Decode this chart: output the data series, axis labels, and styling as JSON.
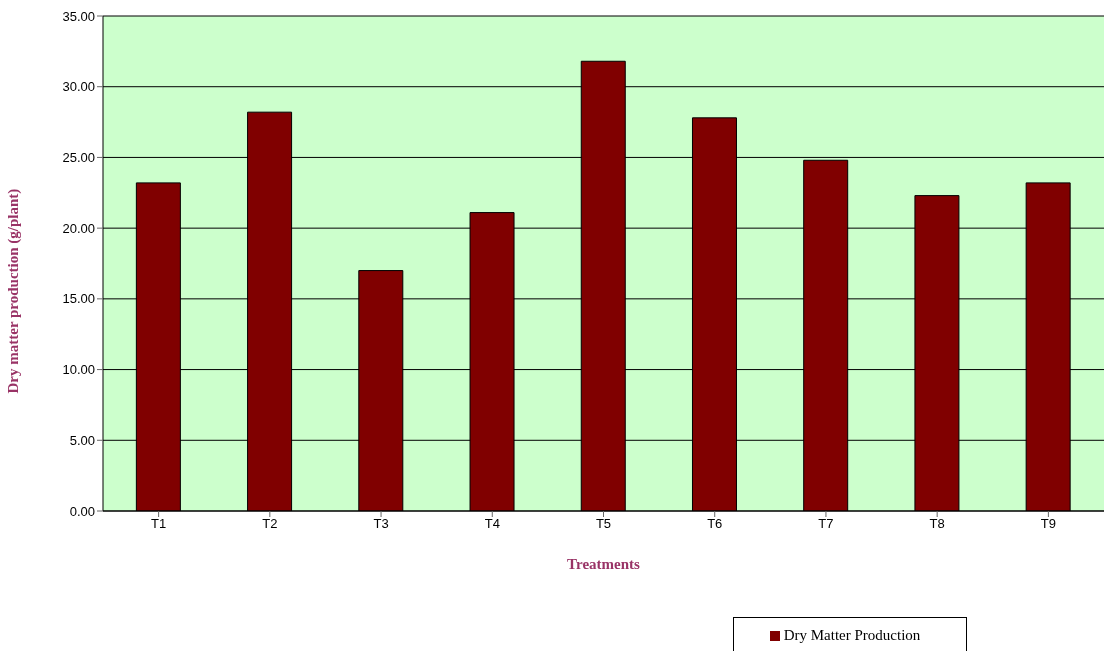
{
  "chart_data": {
    "type": "bar",
    "xlabel": "Treatments",
    "ylabel": "Dry matter production (g/plant)",
    "categories": [
      "T1",
      "T2",
      "T3",
      "T4",
      "T5",
      "T6",
      "T7",
      "T8",
      "T9"
    ],
    "series": [
      {
        "name": "Dry Matter Production",
        "color": "#800000",
        "values": [
          23.2,
          28.2,
          17.0,
          21.1,
          31.8,
          27.8,
          24.8,
          22.3,
          23.2
        ]
      }
    ],
    "ylim": [
      0,
      35
    ],
    "yticks": [
      {
        "value": 0,
        "label": "0.00"
      },
      {
        "value": 5,
        "label": "5.00"
      },
      {
        "value": 10,
        "label": "10.00"
      },
      {
        "value": 15,
        "label": "15.00"
      },
      {
        "value": 20,
        "label": "20.00"
      },
      {
        "value": 25,
        "label": "25.00"
      },
      {
        "value": 30,
        "label": "30.00"
      },
      {
        "value": 35,
        "label": "35.00"
      }
    ],
    "grid": "y",
    "legend": "bottom right"
  }
}
